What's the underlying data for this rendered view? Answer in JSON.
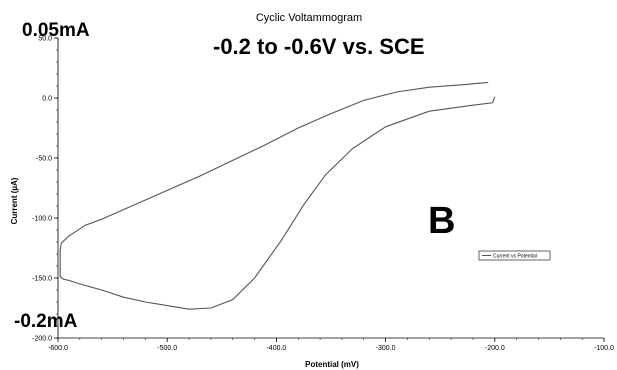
{
  "chart_data": {
    "type": "line",
    "title": "Cyclic Voltammogram",
    "xlabel": "Potential (mV)",
    "ylabel": "Current (µA)",
    "xlim": [
      -600,
      -100
    ],
    "ylim": [
      -200,
      50
    ],
    "x_ticks": [
      -600,
      -500,
      -400,
      -300,
      -200,
      -100
    ],
    "x_tick_labels": [
      "-600.0",
      "-500.0",
      "-400.0",
      "-300.0",
      "-200.0",
      "-100.0"
    ],
    "y_ticks": [
      -200,
      -150,
      -100,
      -50,
      0,
      50
    ],
    "y_tick_labels": [
      "-200.0",
      "-150.0",
      "-100.0",
      "-50.0",
      "0.0",
      "50.0"
    ],
    "grid": false,
    "legend_position": "right",
    "series": [
      {
        "name": "Current vs Potential",
        "color": "#555555",
        "x": [
          -200,
          -202,
          -220,
          -260,
          -300,
          -330,
          -355,
          -375,
          -395,
          -420,
          -440,
          -460,
          -480,
          -500,
          -520,
          -540,
          -560,
          -580,
          -590,
          -595,
          -598,
          -598,
          -597,
          -590,
          -575,
          -560,
          -540,
          -520,
          -500,
          -470,
          -440,
          -410,
          -380,
          -350,
          -320,
          -290,
          -260,
          -230,
          -206
        ],
        "y": [
          1,
          -4,
          -6,
          -11,
          -24,
          -42,
          -64,
          -89,
          -118,
          -150,
          -168,
          -175,
          -176,
          -173,
          -170,
          -166,
          -160,
          -155,
          -152,
          -151,
          -149,
          -127,
          -121,
          -115,
          -106,
          -101,
          -93,
          -85,
          -77,
          -65,
          -52,
          -39,
          -25,
          -13,
          -2,
          5,
          9,
          11,
          13
        ]
      }
    ],
    "annotations": [
      "0.05mA",
      "-0.2mA",
      "-0.2 to -0.6V vs. SCE",
      "B"
    ]
  }
}
